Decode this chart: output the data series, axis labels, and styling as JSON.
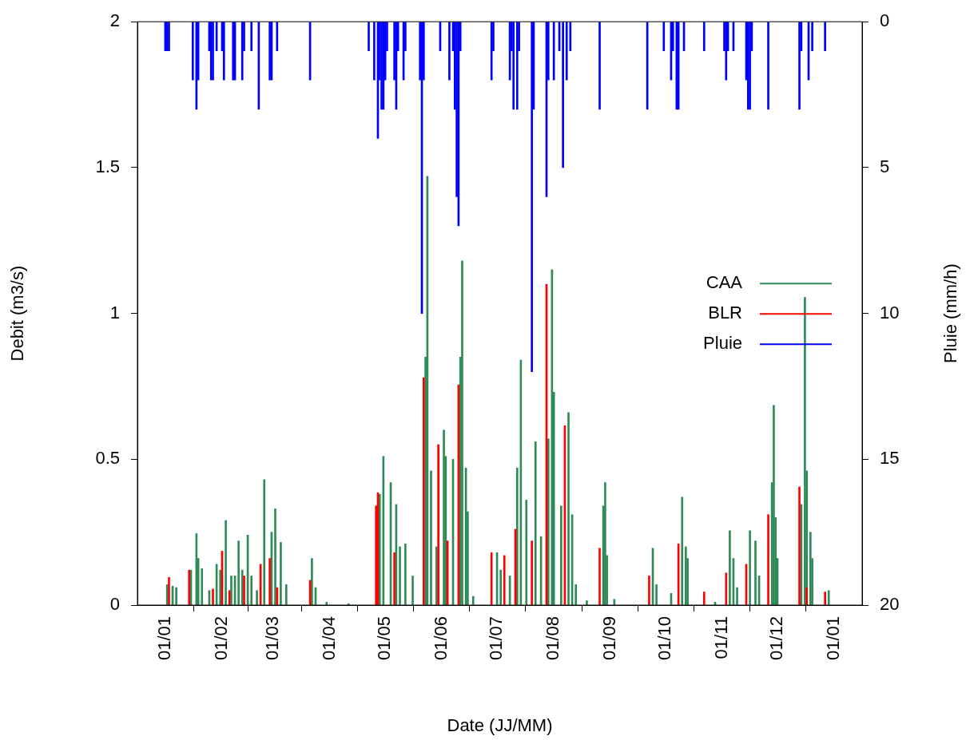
{
  "chart_data": {
    "type": "bar",
    "xlabel": "Date (JJ/MM)",
    "ylabel": "Debit (m3/s)",
    "y2label": "Pluie (mm/h)",
    "xlim": [
      "2001-01-01",
      "2002-01-01"
    ],
    "xticks": [
      {
        "value": "2001-01-01",
        "label": "01/01"
      },
      {
        "value": "2001-02-01",
        "label": "01/02"
      },
      {
        "value": "2001-03-01",
        "label": "01/03"
      },
      {
        "value": "2001-04-01",
        "label": "01/04"
      },
      {
        "value": "2001-05-01",
        "label": "01/05"
      },
      {
        "value": "2001-06-01",
        "label": "01/06"
      },
      {
        "value": "2001-07-01",
        "label": "01/07"
      },
      {
        "value": "2001-08-01",
        "label": "01/08"
      },
      {
        "value": "2001-09-01",
        "label": "01/09"
      },
      {
        "value": "2001-10-01",
        "label": "01/10"
      },
      {
        "value": "2001-11-01",
        "label": "01/11"
      },
      {
        "value": "2001-12-01",
        "label": "01/12"
      },
      {
        "value": "2002-01-01",
        "label": "01/01"
      }
    ],
    "ylim": [
      0,
      2
    ],
    "yticks": [
      0,
      0.5,
      1,
      1.5,
      2
    ],
    "y2lim": [
      20,
      0
    ],
    "y2ticks": [
      0,
      5,
      10,
      15,
      20
    ],
    "legend": "right",
    "series": [
      {
        "name": "CAA",
        "color": "#2e8b57",
        "x": [
          "2001-01-02",
          "2001-01-05",
          "2001-01-07",
          "2001-01-15",
          "2001-01-18",
          "2001-01-19",
          "2001-01-21",
          "2001-01-25",
          "2001-01-29",
          "2001-01-31",
          "2001-02-03",
          "2001-02-06",
          "2001-02-08",
          "2001-02-10",
          "2001-02-12",
          "2001-02-15",
          "2001-02-17",
          "2001-02-20",
          "2001-02-24",
          "2001-02-28",
          "2001-03-02",
          "2001-03-05",
          "2001-03-08",
          "2001-03-22",
          "2001-03-24",
          "2001-03-30",
          "2001-04-11",
          "2001-04-28",
          "2001-04-30",
          "2001-05-04",
          "2001-05-07",
          "2001-05-09",
          "2001-05-12",
          "2001-05-16",
          "2001-05-23",
          "2001-05-24",
          "2001-05-26",
          "2001-05-29",
          "2001-06-02",
          "2001-06-03",
          "2001-06-07",
          "2001-06-11",
          "2001-06-12",
          "2001-06-14",
          "2001-06-15",
          "2001-06-18",
          "2001-07-01",
          "2001-07-03",
          "2001-07-08",
          "2001-07-12",
          "2001-07-14",
          "2001-07-17",
          "2001-07-22",
          "2001-07-25",
          "2001-07-29",
          "2001-07-31",
          "2001-08-01",
          "2001-08-05",
          "2001-08-09",
          "2001-08-11",
          "2001-08-13",
          "2001-08-19",
          "2001-08-28",
          "2001-08-29",
          "2001-08-30",
          "2001-09-03",
          "2001-09-24",
          "2001-09-26",
          "2001-10-04",
          "2001-10-10",
          "2001-10-12",
          "2001-10-13",
          "2001-10-28",
          "2001-11-05",
          "2001-11-07",
          "2001-11-09",
          "2001-11-16",
          "2001-11-19",
          "2001-11-21",
          "2001-11-28",
          "2001-11-29",
          "2001-11-30",
          "2001-12-01",
          "2001-12-14",
          "2001-12-16",
          "2001-12-17",
          "2001-12-19",
          "2001-12-20",
          "2001-12-29"
        ],
        "values": [
          0.07,
          0.065,
          0.06,
          0.12,
          0.245,
          0.16,
          0.125,
          0.05,
          0.14,
          0.12,
          0.29,
          0.1,
          0.1,
          0.22,
          0.12,
          0.24,
          0.1,
          0.05,
          0.43,
          0.25,
          0.33,
          0.215,
          0.07,
          0.16,
          0.06,
          0.01,
          0.005,
          0.38,
          0.51,
          0.42,
          0.345,
          0.2,
          0.21,
          0.1,
          0.85,
          1.47,
          0.46,
          0.2,
          0.6,
          0.51,
          0.5,
          0.85,
          1.18,
          0.47,
          0.32,
          0.03,
          0.18,
          0.12,
          0.1,
          0.47,
          0.84,
          0.36,
          0.56,
          0.235,
          0.57,
          1.15,
          0.73,
          0.34,
          0.66,
          0.31,
          0.07,
          0.015,
          0.34,
          0.42,
          0.17,
          0.02,
          0.195,
          0.07,
          0.04,
          0.37,
          0.2,
          0.16,
          0.01,
          0.255,
          0.16,
          0.06,
          0.255,
          0.22,
          0.1,
          0.42,
          0.685,
          0.3,
          0.16,
          0.345,
          1.055,
          0.46,
          0.25,
          0.16,
          0.05
        ]
      },
      {
        "name": "BLR",
        "color": "#ff0000",
        "x": [
          "2001-01-03",
          "2001-01-14",
          "2001-01-27",
          "2001-02-01",
          "2001-02-05",
          "2001-02-13",
          "2001-02-22",
          "2001-02-27",
          "2001-03-03",
          "2001-03-21",
          "2001-04-26",
          "2001-04-27",
          "2001-05-06",
          "2001-05-22",
          "2001-05-30",
          "2001-06-04",
          "2001-06-10",
          "2001-06-28",
          "2001-07-05",
          "2001-07-11",
          "2001-07-20",
          "2001-07-28",
          "2001-08-07",
          "2001-08-26",
          "2001-09-22",
          "2001-10-08",
          "2001-10-22",
          "2001-11-03",
          "2001-11-14",
          "2001-11-26",
          "2001-12-13",
          "2001-12-17",
          "2001-12-27"
        ],
        "values": [
          0.095,
          0.12,
          0.055,
          0.185,
          0.05,
          0.1,
          0.14,
          0.16,
          0.06,
          0.085,
          0.34,
          0.385,
          0.18,
          0.78,
          0.55,
          0.22,
          0.755,
          0.18,
          0.17,
          0.26,
          0.22,
          1.1,
          0.615,
          0.195,
          0.1,
          0.21,
          0.045,
          0.11,
          0.14,
          0.31,
          0.405,
          0.06,
          0.045
        ]
      },
      {
        "name": "Pluie",
        "color": "#0000ff",
        "axis": "y2",
        "x": [
          "2001-01-01",
          "2001-01-02",
          "2001-01-03",
          "2001-01-16",
          "2001-01-18",
          "2001-01-19",
          "2001-01-25",
          "2001-01-26",
          "2001-01-27",
          "2001-01-29",
          "2001-02-01",
          "2001-02-02",
          "2001-02-07",
          "2001-02-08",
          "2001-02-12",
          "2001-02-13",
          "2001-02-17",
          "2001-02-21",
          "2001-02-27",
          "2001-02-28",
          "2001-03-03",
          "2001-03-21",
          "2001-04-22",
          "2001-04-25",
          "2001-04-27",
          "2001-04-28",
          "2001-04-29",
          "2001-04-30",
          "2001-05-01",
          "2001-05-02",
          "2001-05-06",
          "2001-05-07",
          "2001-05-08",
          "2001-05-11",
          "2001-05-12",
          "2001-05-20",
          "2001-05-21",
          "2001-05-22",
          "2001-05-31",
          "2001-06-05",
          "2001-06-07",
          "2001-06-08",
          "2001-06-09",
          "2001-06-10",
          "2001-06-11",
          "2001-06-28",
          "2001-06-29",
          "2001-07-08",
          "2001-07-09",
          "2001-07-10",
          "2001-07-12",
          "2001-07-13",
          "2001-07-20",
          "2001-07-21",
          "2001-07-28",
          "2001-07-29",
          "2001-08-01",
          "2001-08-04",
          "2001-08-06",
          "2001-08-08",
          "2001-08-10",
          "2001-08-26",
          "2001-09-21",
          "2001-09-30",
          "2001-10-04",
          "2001-10-05",
          "2001-10-07",
          "2001-10-08",
          "2001-10-11",
          "2001-10-22",
          "2001-11-02",
          "2001-11-03",
          "2001-11-04",
          "2001-11-07",
          "2001-11-14",
          "2001-11-15",
          "2001-11-16",
          "2001-11-17",
          "2001-11-26",
          "2001-12-13",
          "2001-12-14",
          "2001-12-18",
          "2001-12-20",
          "2001-12-27"
        ],
        "values": [
          1,
          1,
          1,
          2,
          3,
          2,
          1,
          2,
          2,
          1,
          1,
          2,
          2,
          2,
          2,
          1,
          1,
          3,
          2,
          2,
          1,
          2,
          1,
          2,
          4,
          2,
          3,
          3,
          2,
          1,
          2,
          3,
          1,
          2,
          1,
          2,
          10,
          2,
          1,
          2,
          1,
          3,
          6,
          7,
          1,
          2,
          1,
          2,
          1,
          3,
          3,
          1,
          12,
          3,
          6,
          2,
          2,
          1,
          5,
          2,
          1,
          3,
          3,
          1,
          2,
          1,
          3,
          3,
          1,
          1,
          1,
          2,
          1,
          1,
          2,
          3,
          3,
          1,
          3,
          3,
          1,
          2,
          1,
          1
        ]
      }
    ]
  }
}
